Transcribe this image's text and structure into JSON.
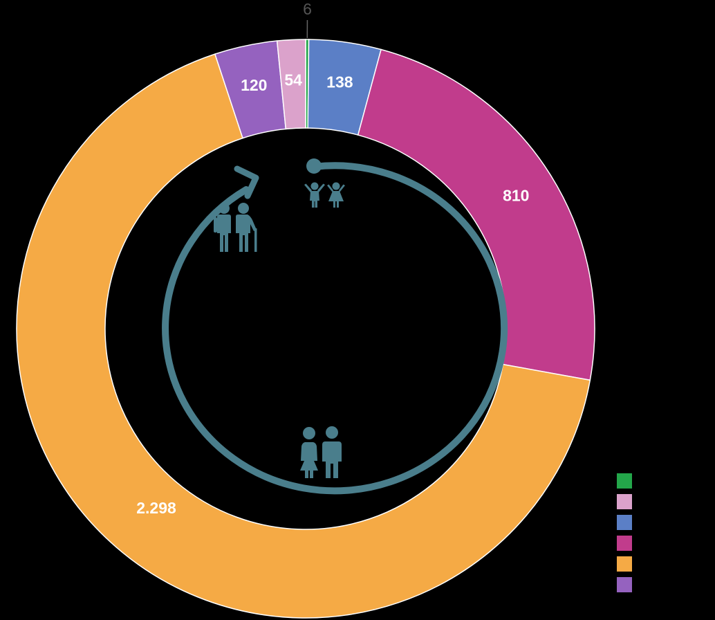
{
  "chart_data": {
    "type": "pie",
    "style": "donut",
    "slices": [
      {
        "label": "6",
        "value": 6,
        "color": "#23a64a",
        "label_position": "outside"
      },
      {
        "label": "138",
        "value": 138,
        "color": "#5b7fc6",
        "label_position": "inside"
      },
      {
        "label": "810",
        "value": 810,
        "color": "#c13c8c",
        "label_position": "inside"
      },
      {
        "label": "2.298",
        "value": 2298,
        "color": "#f5aa45",
        "label_position": "inside"
      },
      {
        "label": "120",
        "value": 120,
        "color": "#9562bf",
        "label_position": "inside"
      },
      {
        "label": "54",
        "value": 54,
        "color": "#dba2cb",
        "label_position": "inside"
      }
    ],
    "legend": {
      "placement": "bottom-right",
      "swatches": [
        "#23a64a",
        "#dba2cb",
        "#5b7fc6",
        "#c13c8c",
        "#f5aa45",
        "#9562bf"
      ]
    },
    "center_graphic": {
      "arrow_color": "#4a7e8c",
      "icons": [
        "children-icon",
        "adults-icon",
        "elderly-couple-icon"
      ]
    }
  }
}
